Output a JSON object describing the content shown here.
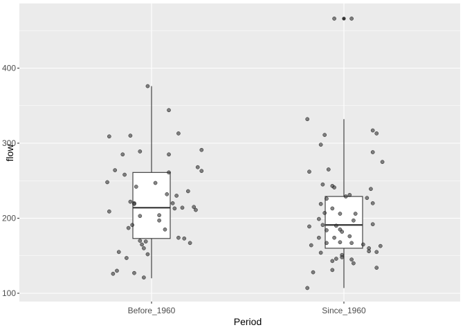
{
  "chart_data": {
    "type": "boxplot",
    "xlabel": "Period",
    "ylabel": "flow",
    "categories": [
      "Before_1960",
      "Since_1960"
    ],
    "ylim": [
      90,
      480
    ],
    "yticks": [
      100,
      200,
      300,
      400
    ],
    "grid": true,
    "colors": {
      "panel_background": "#ebebeb",
      "grid_major": "#ffffff",
      "box_fill": "#ffffff",
      "box_line": "#333333",
      "points": "#333333"
    },
    "boxes": [
      {
        "category": "Before_1960",
        "min": 120,
        "q1": 173,
        "median": 214,
        "q3": 261,
        "max": 376,
        "outliers": []
      },
      {
        "category": "Since_1960",
        "min": 107,
        "q1": 160,
        "median": 191,
        "q3": 229,
        "max": 332,
        "outliers": [
          466
        ]
      }
    ],
    "points": [
      {
        "category": "Before_1960",
        "x": "Before_1960",
        "jitter": -0.22,
        "y": 309
      },
      {
        "category": "Before_1960",
        "x": "Before_1960",
        "jitter": -0.11,
        "y": 310
      },
      {
        "category": "Before_1960",
        "x": "Before_1960",
        "jitter": 0.09,
        "y": 344
      },
      {
        "category": "Before_1960",
        "x": "Before_1960",
        "jitter": 0.14,
        "y": 313
      },
      {
        "category": "Before_1960",
        "x": "Before_1960",
        "jitter": -0.02,
        "y": 376
      },
      {
        "category": "Before_1960",
        "x": "Before_1960",
        "jitter": 0.26,
        "y": 291
      },
      {
        "category": "Before_1960",
        "x": "Before_1960",
        "jitter": -0.15,
        "y": 285
      },
      {
        "category": "Before_1960",
        "x": "Before_1960",
        "jitter": -0.06,
        "y": 289
      },
      {
        "category": "Before_1960",
        "x": "Before_1960",
        "jitter": 0.09,
        "y": 285
      },
      {
        "category": "Before_1960",
        "x": "Before_1960",
        "jitter": 0.24,
        "y": 268
      },
      {
        "category": "Before_1960",
        "x": "Before_1960",
        "jitter": 0.26,
        "y": 263
      },
      {
        "category": "Before_1960",
        "x": "Before_1960",
        "jitter": -0.19,
        "y": 264
      },
      {
        "category": "Before_1960",
        "x": "Before_1960",
        "jitter": 0.09,
        "y": 261
      },
      {
        "category": "Before_1960",
        "x": "Before_1960",
        "jitter": -0.14,
        "y": 258
      },
      {
        "category": "Before_1960",
        "x": "Before_1960",
        "jitter": -0.23,
        "y": 248
      },
      {
        "category": "Before_1960",
        "x": "Before_1960",
        "jitter": 0.02,
        "y": 247
      },
      {
        "category": "Before_1960",
        "x": "Before_1960",
        "jitter": -0.08,
        "y": 242
      },
      {
        "category": "Before_1960",
        "x": "Before_1960",
        "jitter": 0.19,
        "y": 236
      },
      {
        "category": "Before_1960",
        "x": "Before_1960",
        "jitter": 0.08,
        "y": 232
      },
      {
        "category": "Before_1960",
        "x": "Before_1960",
        "jitter": 0.13,
        "y": 230
      },
      {
        "category": "Before_1960",
        "x": "Before_1960",
        "jitter": -0.11,
        "y": 222
      },
      {
        "category": "Before_1960",
        "x": "Before_1960",
        "jitter": -0.09,
        "y": 220
      },
      {
        "category": "Before_1960",
        "x": "Before_1960",
        "jitter": -0.09,
        "y": 219
      },
      {
        "category": "Before_1960",
        "x": "Before_1960",
        "jitter": 0.11,
        "y": 220
      },
      {
        "category": "Before_1960",
        "x": "Before_1960",
        "jitter": 0.12,
        "y": 213
      },
      {
        "category": "Before_1960",
        "x": "Before_1960",
        "jitter": 0.16,
        "y": 214
      },
      {
        "category": "Before_1960",
        "x": "Before_1960",
        "jitter": 0.22,
        "y": 215
      },
      {
        "category": "Before_1960",
        "x": "Before_1960",
        "jitter": 0.23,
        "y": 211
      },
      {
        "category": "Before_1960",
        "x": "Before_1960",
        "jitter": -0.22,
        "y": 209
      },
      {
        "category": "Before_1960",
        "x": "Before_1960",
        "jitter": 0.04,
        "y": 204
      },
      {
        "category": "Before_1960",
        "x": "Before_1960",
        "jitter": -0.06,
        "y": 203
      },
      {
        "category": "Before_1960",
        "x": "Before_1960",
        "jitter": 0.04,
        "y": 197
      },
      {
        "category": "Before_1960",
        "x": "Before_1960",
        "jitter": -0.1,
        "y": 191
      },
      {
        "category": "Before_1960",
        "x": "Before_1960",
        "jitter": -0.12,
        "y": 187
      },
      {
        "category": "Before_1960",
        "x": "Before_1960",
        "jitter": 0.07,
        "y": 185
      },
      {
        "category": "Before_1960",
        "x": "Before_1960",
        "jitter": 0.14,
        "y": 174
      },
      {
        "category": "Before_1960",
        "x": "Before_1960",
        "jitter": 0.17,
        "y": 173
      },
      {
        "category": "Before_1960",
        "x": "Before_1960",
        "jitter": -0.06,
        "y": 170
      },
      {
        "category": "Before_1960",
        "x": "Before_1960",
        "jitter": -0.03,
        "y": 169
      },
      {
        "category": "Before_1960",
        "x": "Before_1960",
        "jitter": 0.2,
        "y": 167
      },
      {
        "category": "Before_1960",
        "x": "Before_1960",
        "jitter": -0.05,
        "y": 165
      },
      {
        "category": "Before_1960",
        "x": "Before_1960",
        "jitter": -0.04,
        "y": 160
      },
      {
        "category": "Before_1960",
        "x": "Before_1960",
        "jitter": -0.17,
        "y": 155
      },
      {
        "category": "Before_1960",
        "x": "Before_1960",
        "jitter": -0.02,
        "y": 152
      },
      {
        "category": "Before_1960",
        "x": "Before_1960",
        "jitter": -0.13,
        "y": 147
      },
      {
        "category": "Before_1960",
        "x": "Before_1960",
        "jitter": -0.18,
        "y": 130
      },
      {
        "category": "Before_1960",
        "x": "Before_1960",
        "jitter": -0.2,
        "y": 126
      },
      {
        "category": "Before_1960",
        "x": "Before_1960",
        "jitter": -0.09,
        "y": 127
      },
      {
        "category": "Before_1960",
        "x": "Before_1960",
        "jitter": -0.04,
        "y": 121
      },
      {
        "category": "Since_1960",
        "x": "Since_1960",
        "jitter": -0.05,
        "y": 466
      },
      {
        "category": "Since_1960",
        "x": "Since_1960",
        "jitter": 0.04,
        "y": 466
      },
      {
        "category": "Since_1960",
        "x": "Since_1960",
        "jitter": -0.19,
        "y": 332
      },
      {
        "category": "Since_1960",
        "x": "Since_1960",
        "jitter": 0.15,
        "y": 317
      },
      {
        "category": "Since_1960",
        "x": "Since_1960",
        "jitter": 0.17,
        "y": 313
      },
      {
        "category": "Since_1960",
        "x": "Since_1960",
        "jitter": -0.1,
        "y": 311
      },
      {
        "category": "Since_1960",
        "x": "Since_1960",
        "jitter": -0.12,
        "y": 298
      },
      {
        "category": "Since_1960",
        "x": "Since_1960",
        "jitter": 0.15,
        "y": 288
      },
      {
        "category": "Since_1960",
        "x": "Since_1960",
        "jitter": 0.2,
        "y": 275
      },
      {
        "category": "Since_1960",
        "x": "Since_1960",
        "jitter": -0.08,
        "y": 265
      },
      {
        "category": "Since_1960",
        "x": "Since_1960",
        "jitter": -0.18,
        "y": 262
      },
      {
        "category": "Since_1960",
        "x": "Since_1960",
        "jitter": -0.11,
        "y": 245
      },
      {
        "category": "Since_1960",
        "x": "Since_1960",
        "jitter": -0.06,
        "y": 243
      },
      {
        "category": "Since_1960",
        "x": "Since_1960",
        "jitter": -0.05,
        "y": 241
      },
      {
        "category": "Since_1960",
        "x": "Since_1960",
        "jitter": 0.14,
        "y": 239
      },
      {
        "category": "Since_1960",
        "x": "Since_1960",
        "jitter": 0.03,
        "y": 231
      },
      {
        "category": "Since_1960",
        "x": "Since_1960",
        "jitter": 0.01,
        "y": 229
      },
      {
        "category": "Since_1960",
        "x": "Since_1960",
        "jitter": -0.09,
        "y": 226
      },
      {
        "category": "Since_1960",
        "x": "Since_1960",
        "jitter": 0.12,
        "y": 227
      },
      {
        "category": "Since_1960",
        "x": "Since_1960",
        "jitter": -0.12,
        "y": 219
      },
      {
        "category": "Since_1960",
        "x": "Since_1960",
        "jitter": 0.15,
        "y": 220
      },
      {
        "category": "Since_1960",
        "x": "Since_1960",
        "jitter": -0.06,
        "y": 213
      },
      {
        "category": "Since_1960",
        "x": "Since_1960",
        "jitter": -0.1,
        "y": 207
      },
      {
        "category": "Since_1960",
        "x": "Since_1960",
        "jitter": -0.02,
        "y": 206
      },
      {
        "category": "Since_1960",
        "x": "Since_1960",
        "jitter": 0.06,
        "y": 206
      },
      {
        "category": "Since_1960",
        "x": "Since_1960",
        "jitter": -0.13,
        "y": 199
      },
      {
        "category": "Since_1960",
        "x": "Since_1960",
        "jitter": 0.05,
        "y": 197
      },
      {
        "category": "Since_1960",
        "x": "Since_1960",
        "jitter": 0.15,
        "y": 192
      },
      {
        "category": "Since_1960",
        "x": "Since_1960",
        "jitter": -0.11,
        "y": 191
      },
      {
        "category": "Since_1960",
        "x": "Since_1960",
        "jitter": -0.18,
        "y": 189
      },
      {
        "category": "Since_1960",
        "x": "Since_1960",
        "jitter": -0.04,
        "y": 190
      },
      {
        "category": "Since_1960",
        "x": "Since_1960",
        "jitter": -0.02,
        "y": 185
      },
      {
        "category": "Since_1960",
        "x": "Since_1960",
        "jitter": -0.09,
        "y": 184
      },
      {
        "category": "Since_1960",
        "x": "Since_1960",
        "jitter": -0.01,
        "y": 182
      },
      {
        "category": "Since_1960",
        "x": "Since_1960",
        "jitter": 0.03,
        "y": 176
      },
      {
        "category": "Since_1960",
        "x": "Since_1960",
        "jitter": -0.13,
        "y": 174
      },
      {
        "category": "Since_1960",
        "x": "Since_1960",
        "jitter": -0.05,
        "y": 174
      },
      {
        "category": "Since_1960",
        "x": "Since_1960",
        "jitter": -0.09,
        "y": 167
      },
      {
        "category": "Since_1960",
        "x": "Since_1960",
        "jitter": -0.02,
        "y": 168
      },
      {
        "category": "Since_1960",
        "x": "Since_1960",
        "jitter": 0.04,
        "y": 167
      },
      {
        "category": "Since_1960",
        "x": "Since_1960",
        "jitter": 0.1,
        "y": 165
      },
      {
        "category": "Since_1960",
        "x": "Since_1960",
        "jitter": -0.17,
        "y": 164
      },
      {
        "category": "Since_1960",
        "x": "Since_1960",
        "jitter": 0.19,
        "y": 163
      },
      {
        "category": "Since_1960",
        "x": "Since_1960",
        "jitter": 0.13,
        "y": 160
      },
      {
        "category": "Since_1960",
        "x": "Since_1960",
        "jitter": 0.13,
        "y": 156
      },
      {
        "category": "Since_1960",
        "x": "Since_1960",
        "jitter": 0.17,
        "y": 155
      },
      {
        "category": "Since_1960",
        "x": "Since_1960",
        "jitter": -0.12,
        "y": 154
      },
      {
        "category": "Since_1960",
        "x": "Since_1960",
        "jitter": -0.01,
        "y": 151
      },
      {
        "category": "Since_1960",
        "x": "Since_1960",
        "jitter": -0.01,
        "y": 148
      },
      {
        "category": "Since_1960",
        "x": "Since_1960",
        "jitter": -0.04,
        "y": 146
      },
      {
        "category": "Since_1960",
        "x": "Since_1960",
        "jitter": -0.06,
        "y": 143
      },
      {
        "category": "Since_1960",
        "x": "Since_1960",
        "jitter": 0.04,
        "y": 145
      },
      {
        "category": "Since_1960",
        "x": "Since_1960",
        "jitter": 0.05,
        "y": 140
      },
      {
        "category": "Since_1960",
        "x": "Since_1960",
        "jitter": -0.06,
        "y": 131
      },
      {
        "category": "Since_1960",
        "x": "Since_1960",
        "jitter": 0.17,
        "y": 134
      },
      {
        "category": "Since_1960",
        "x": "Since_1960",
        "jitter": -0.16,
        "y": 128
      },
      {
        "category": "Since_1960",
        "x": "Since_1960",
        "jitter": -0.19,
        "y": 107
      }
    ]
  }
}
